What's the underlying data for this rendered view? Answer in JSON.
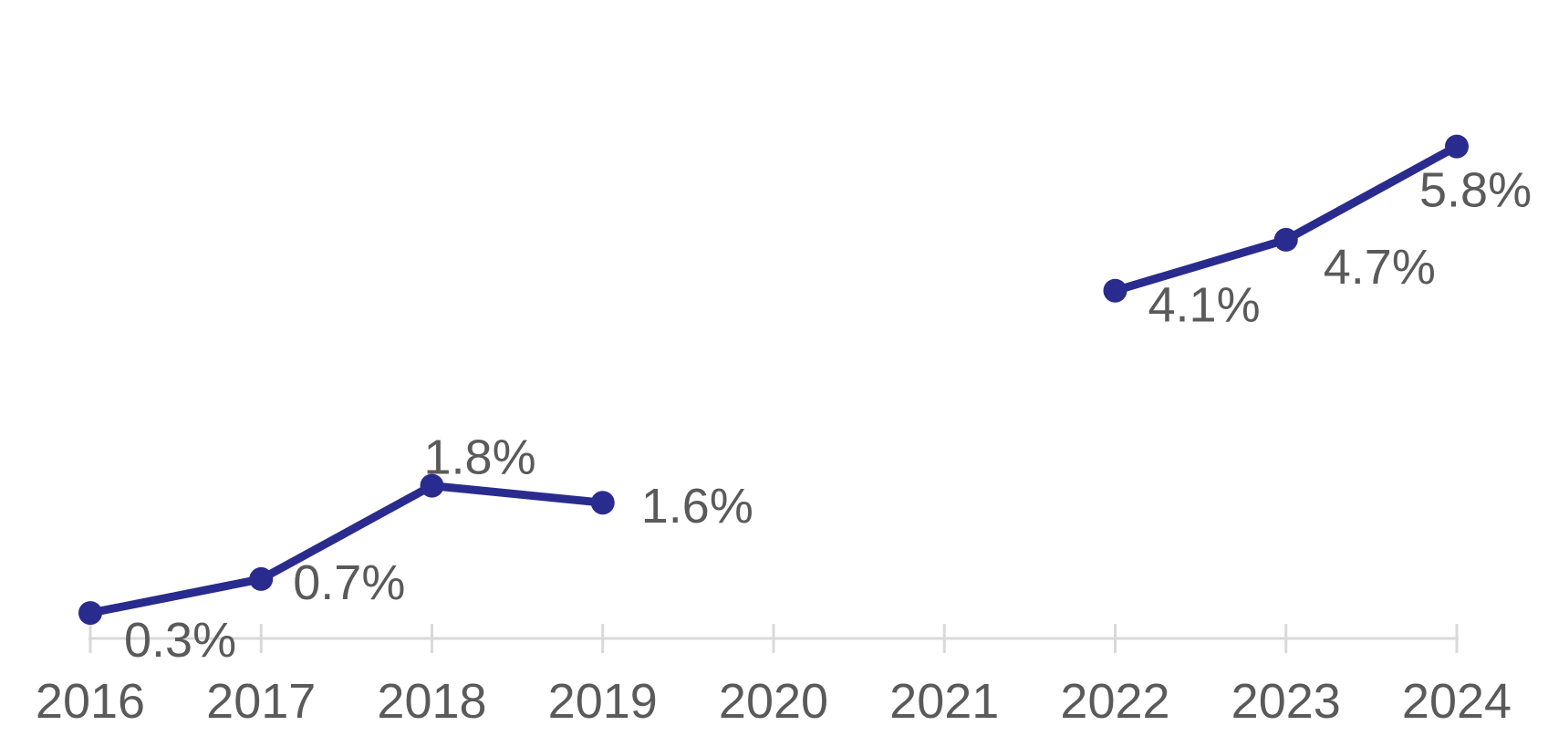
{
  "chart_data": {
    "type": "line",
    "title": "",
    "xlabel": "",
    "ylabel": "",
    "categories": [
      "2016",
      "2017",
      "2018",
      "2019",
      "2020",
      "2021",
      "2022",
      "2023",
      "2024"
    ],
    "series": [
      {
        "name": "percentage",
        "values": [
          0.3,
          0.7,
          1.8,
          1.6,
          null,
          null,
          4.1,
          4.7,
          5.8
        ],
        "data_labels": [
          "0.3%",
          "0.7%",
          "1.8%",
          "1.6%",
          null,
          null,
          "4.1%",
          "4.7%",
          "5.8%"
        ]
      }
    ],
    "ylim": [
      0,
      6.5
    ],
    "grid": false,
    "legend_position": "none",
    "marker": "circle",
    "line_color": "#2a2b8e",
    "marker_color": "#2a2b8e",
    "text_color": "#5a5a5a",
    "axis_color": "#d9d9d9",
    "background_color": "#ffffff"
  }
}
